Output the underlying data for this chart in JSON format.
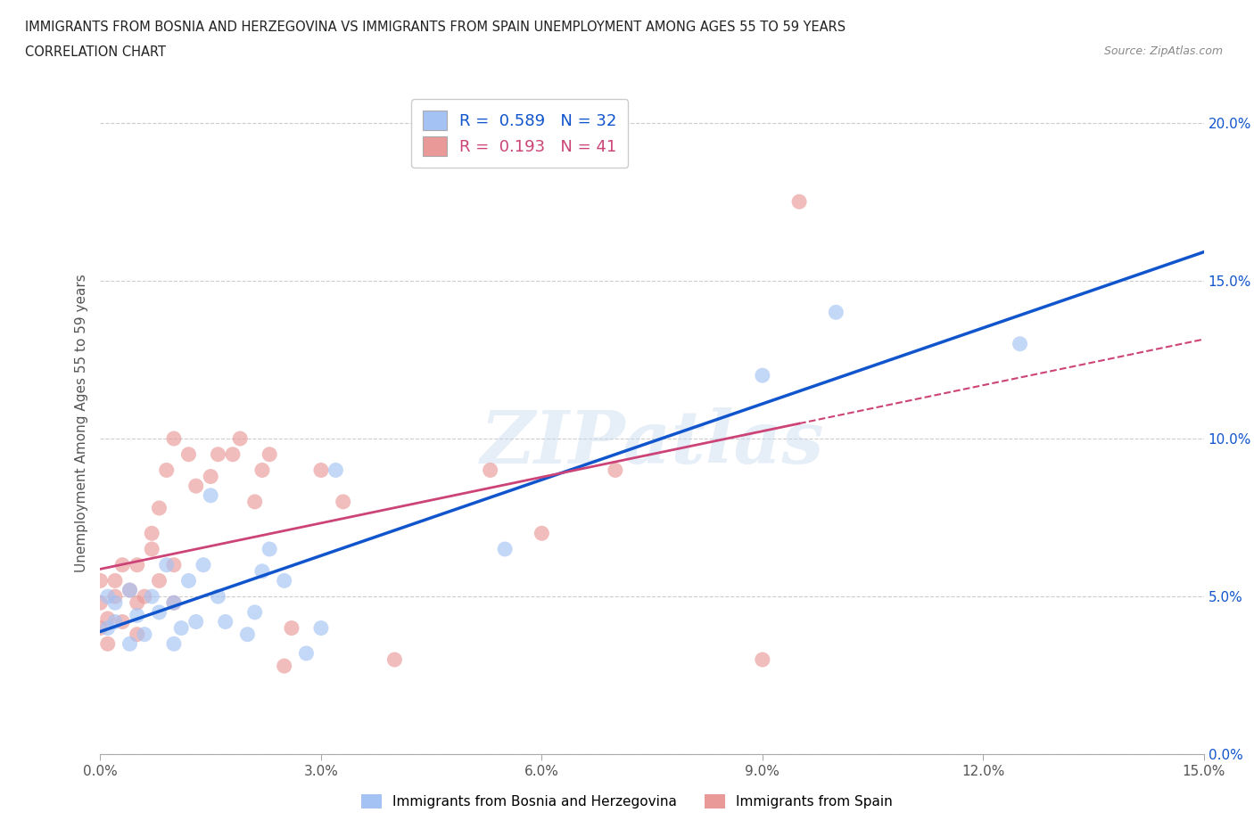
{
  "title_line1": "IMMIGRANTS FROM BOSNIA AND HERZEGOVINA VS IMMIGRANTS FROM SPAIN UNEMPLOYMENT AMONG AGES 55 TO 59 YEARS",
  "title_line2": "CORRELATION CHART",
  "source_text": "Source: ZipAtlas.com",
  "ylabel": "Unemployment Among Ages 55 to 59 years",
  "xlim": [
    0.0,
    0.15
  ],
  "ylim": [
    0.0,
    0.21
  ],
  "xticks": [
    0.0,
    0.03,
    0.06,
    0.09,
    0.12,
    0.15
  ],
  "xtick_labels": [
    "0.0%",
    "3.0%",
    "6.0%",
    "9.0%",
    "12.0%",
    "15.0%"
  ],
  "yticks": [
    0.0,
    0.05,
    0.1,
    0.15,
    0.2
  ],
  "ytick_labels": [
    "0.0%",
    "5.0%",
    "10.0%",
    "15.0%",
    "20.0%"
  ],
  "legend_label1": "Immigrants from Bosnia and Herzegovina",
  "legend_label2": "Immigrants from Spain",
  "R1": 0.589,
  "N1": 32,
  "R2": 0.193,
  "N2": 41,
  "color1": "#a4c2f4",
  "color2": "#ea9999",
  "line_color1": "#1155cc",
  "line_color2": "#cc4477",
  "line_color2_dash": "#e06090",
  "watermark": "ZIPatlas",
  "bosnia_x": [
    0.001,
    0.001,
    0.002,
    0.002,
    0.004,
    0.004,
    0.005,
    0.006,
    0.007,
    0.008,
    0.009,
    0.01,
    0.01,
    0.011,
    0.012,
    0.013,
    0.014,
    0.015,
    0.016,
    0.017,
    0.02,
    0.021,
    0.022,
    0.023,
    0.025,
    0.028,
    0.03,
    0.032,
    0.055,
    0.09,
    0.1,
    0.125
  ],
  "bosnia_y": [
    0.04,
    0.05,
    0.042,
    0.048,
    0.035,
    0.052,
    0.044,
    0.038,
    0.05,
    0.045,
    0.06,
    0.035,
    0.048,
    0.04,
    0.055,
    0.042,
    0.06,
    0.082,
    0.05,
    0.042,
    0.038,
    0.045,
    0.058,
    0.065,
    0.055,
    0.032,
    0.04,
    0.09,
    0.065,
    0.12,
    0.14,
    0.13
  ],
  "spain_x": [
    0.0,
    0.0,
    0.0,
    0.001,
    0.001,
    0.002,
    0.002,
    0.003,
    0.003,
    0.004,
    0.005,
    0.005,
    0.005,
    0.006,
    0.007,
    0.007,
    0.008,
    0.008,
    0.009,
    0.01,
    0.01,
    0.01,
    0.012,
    0.013,
    0.015,
    0.016,
    0.018,
    0.019,
    0.021,
    0.022,
    0.023,
    0.025,
    0.026,
    0.03,
    0.033,
    0.04,
    0.053,
    0.06,
    0.07,
    0.09,
    0.095
  ],
  "spain_y": [
    0.04,
    0.048,
    0.055,
    0.035,
    0.043,
    0.05,
    0.055,
    0.042,
    0.06,
    0.052,
    0.038,
    0.048,
    0.06,
    0.05,
    0.065,
    0.07,
    0.055,
    0.078,
    0.09,
    0.048,
    0.06,
    0.1,
    0.095,
    0.085,
    0.088,
    0.095,
    0.095,
    0.1,
    0.08,
    0.09,
    0.095,
    0.028,
    0.04,
    0.09,
    0.08,
    0.03,
    0.09,
    0.07,
    0.09,
    0.03,
    0.175
  ]
}
